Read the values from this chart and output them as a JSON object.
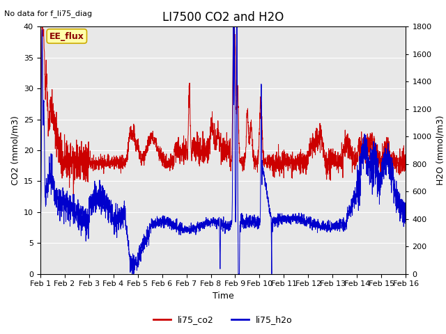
{
  "title": "LI7500 CO2 and H2O",
  "top_left_text": "No data for f_li75_diag",
  "legend_label1": "li75_co2",
  "legend_label2": "li75_h2o",
  "box_label": "EE_flux",
  "xlabel": "Time",
  "ylabel_left": "CO2 (mmol/m3)",
  "ylabel_right": "H2O (mmol/m3)",
  "xlim": [
    0,
    15
  ],
  "ylim_left": [
    0,
    40
  ],
  "ylim_right": [
    0,
    1800
  ],
  "xtick_positions": [
    0,
    1,
    2,
    3,
    4,
    5,
    6,
    7,
    8,
    9,
    10,
    11,
    12,
    13,
    14,
    15
  ],
  "xtick_labels": [
    "Feb 1",
    "Feb 2",
    "Feb 3",
    "Feb 4",
    "Feb 5",
    "Feb 6",
    "Feb 7",
    "Feb 8",
    "Feb 9",
    "Feb 10",
    "Feb 11",
    "Feb 12",
    "Feb 13",
    "Feb 14",
    "Feb 15",
    "Feb 16"
  ],
  "yticks_left": [
    0,
    5,
    10,
    15,
    20,
    25,
    30,
    35,
    40
  ],
  "yticks_right": [
    0,
    200,
    400,
    600,
    800,
    1000,
    1200,
    1400,
    1600,
    1800
  ],
  "color_co2": "#cc0000",
  "color_h2o": "#0000cc",
  "plot_bg_color": "#e8e8e8",
  "box_facecolor": "#ffffaa",
  "box_edgecolor": "#ccaa00",
  "title_fontsize": 12,
  "label_fontsize": 9,
  "tick_fontsize": 8,
  "legend_fontsize": 9,
  "linewidth": 0.7
}
